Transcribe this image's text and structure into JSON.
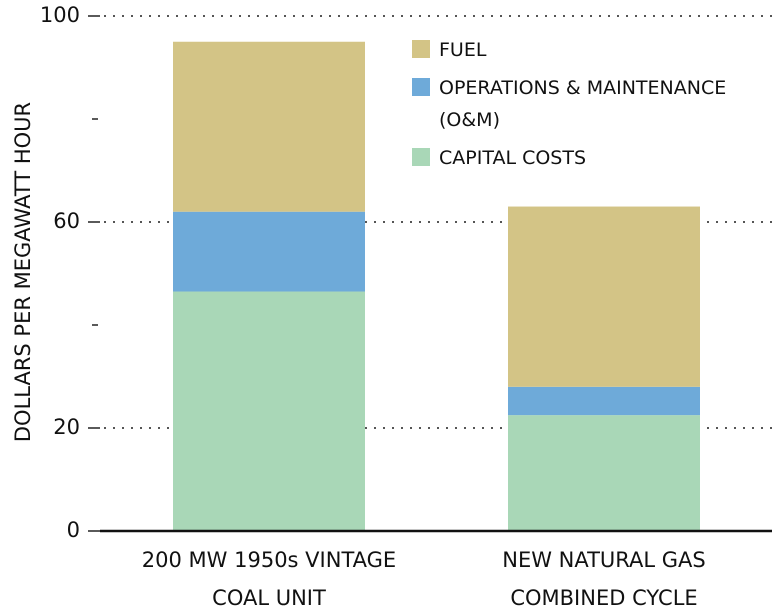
{
  "chart_data": {
    "type": "stacked_bar",
    "ylabel": "DOLLARS PER MEGAWATT HOUR",
    "categories": [
      "200 MW 1950s VINTAGE COAL UNIT",
      "NEW NATURAL GAS COMBINED CYCLE"
    ],
    "series": [
      {
        "name": "CAPITAL COSTS",
        "color": "#a9d7b7",
        "values": [
          46.5,
          22.5
        ]
      },
      {
        "name": "OPERATIONS & MAINTENANCE (O&M)",
        "color": "#6eaad9",
        "values": [
          15.5,
          5.5
        ]
      },
      {
        "name": "FUEL",
        "color": "#d3c486",
        "values": [
          33,
          35
        ]
      }
    ],
    "ylim": [
      0,
      100
    ],
    "yticks": [
      0,
      20,
      60,
      100
    ],
    "minor_yticks": [
      40,
      80
    ],
    "grid": true
  }
}
